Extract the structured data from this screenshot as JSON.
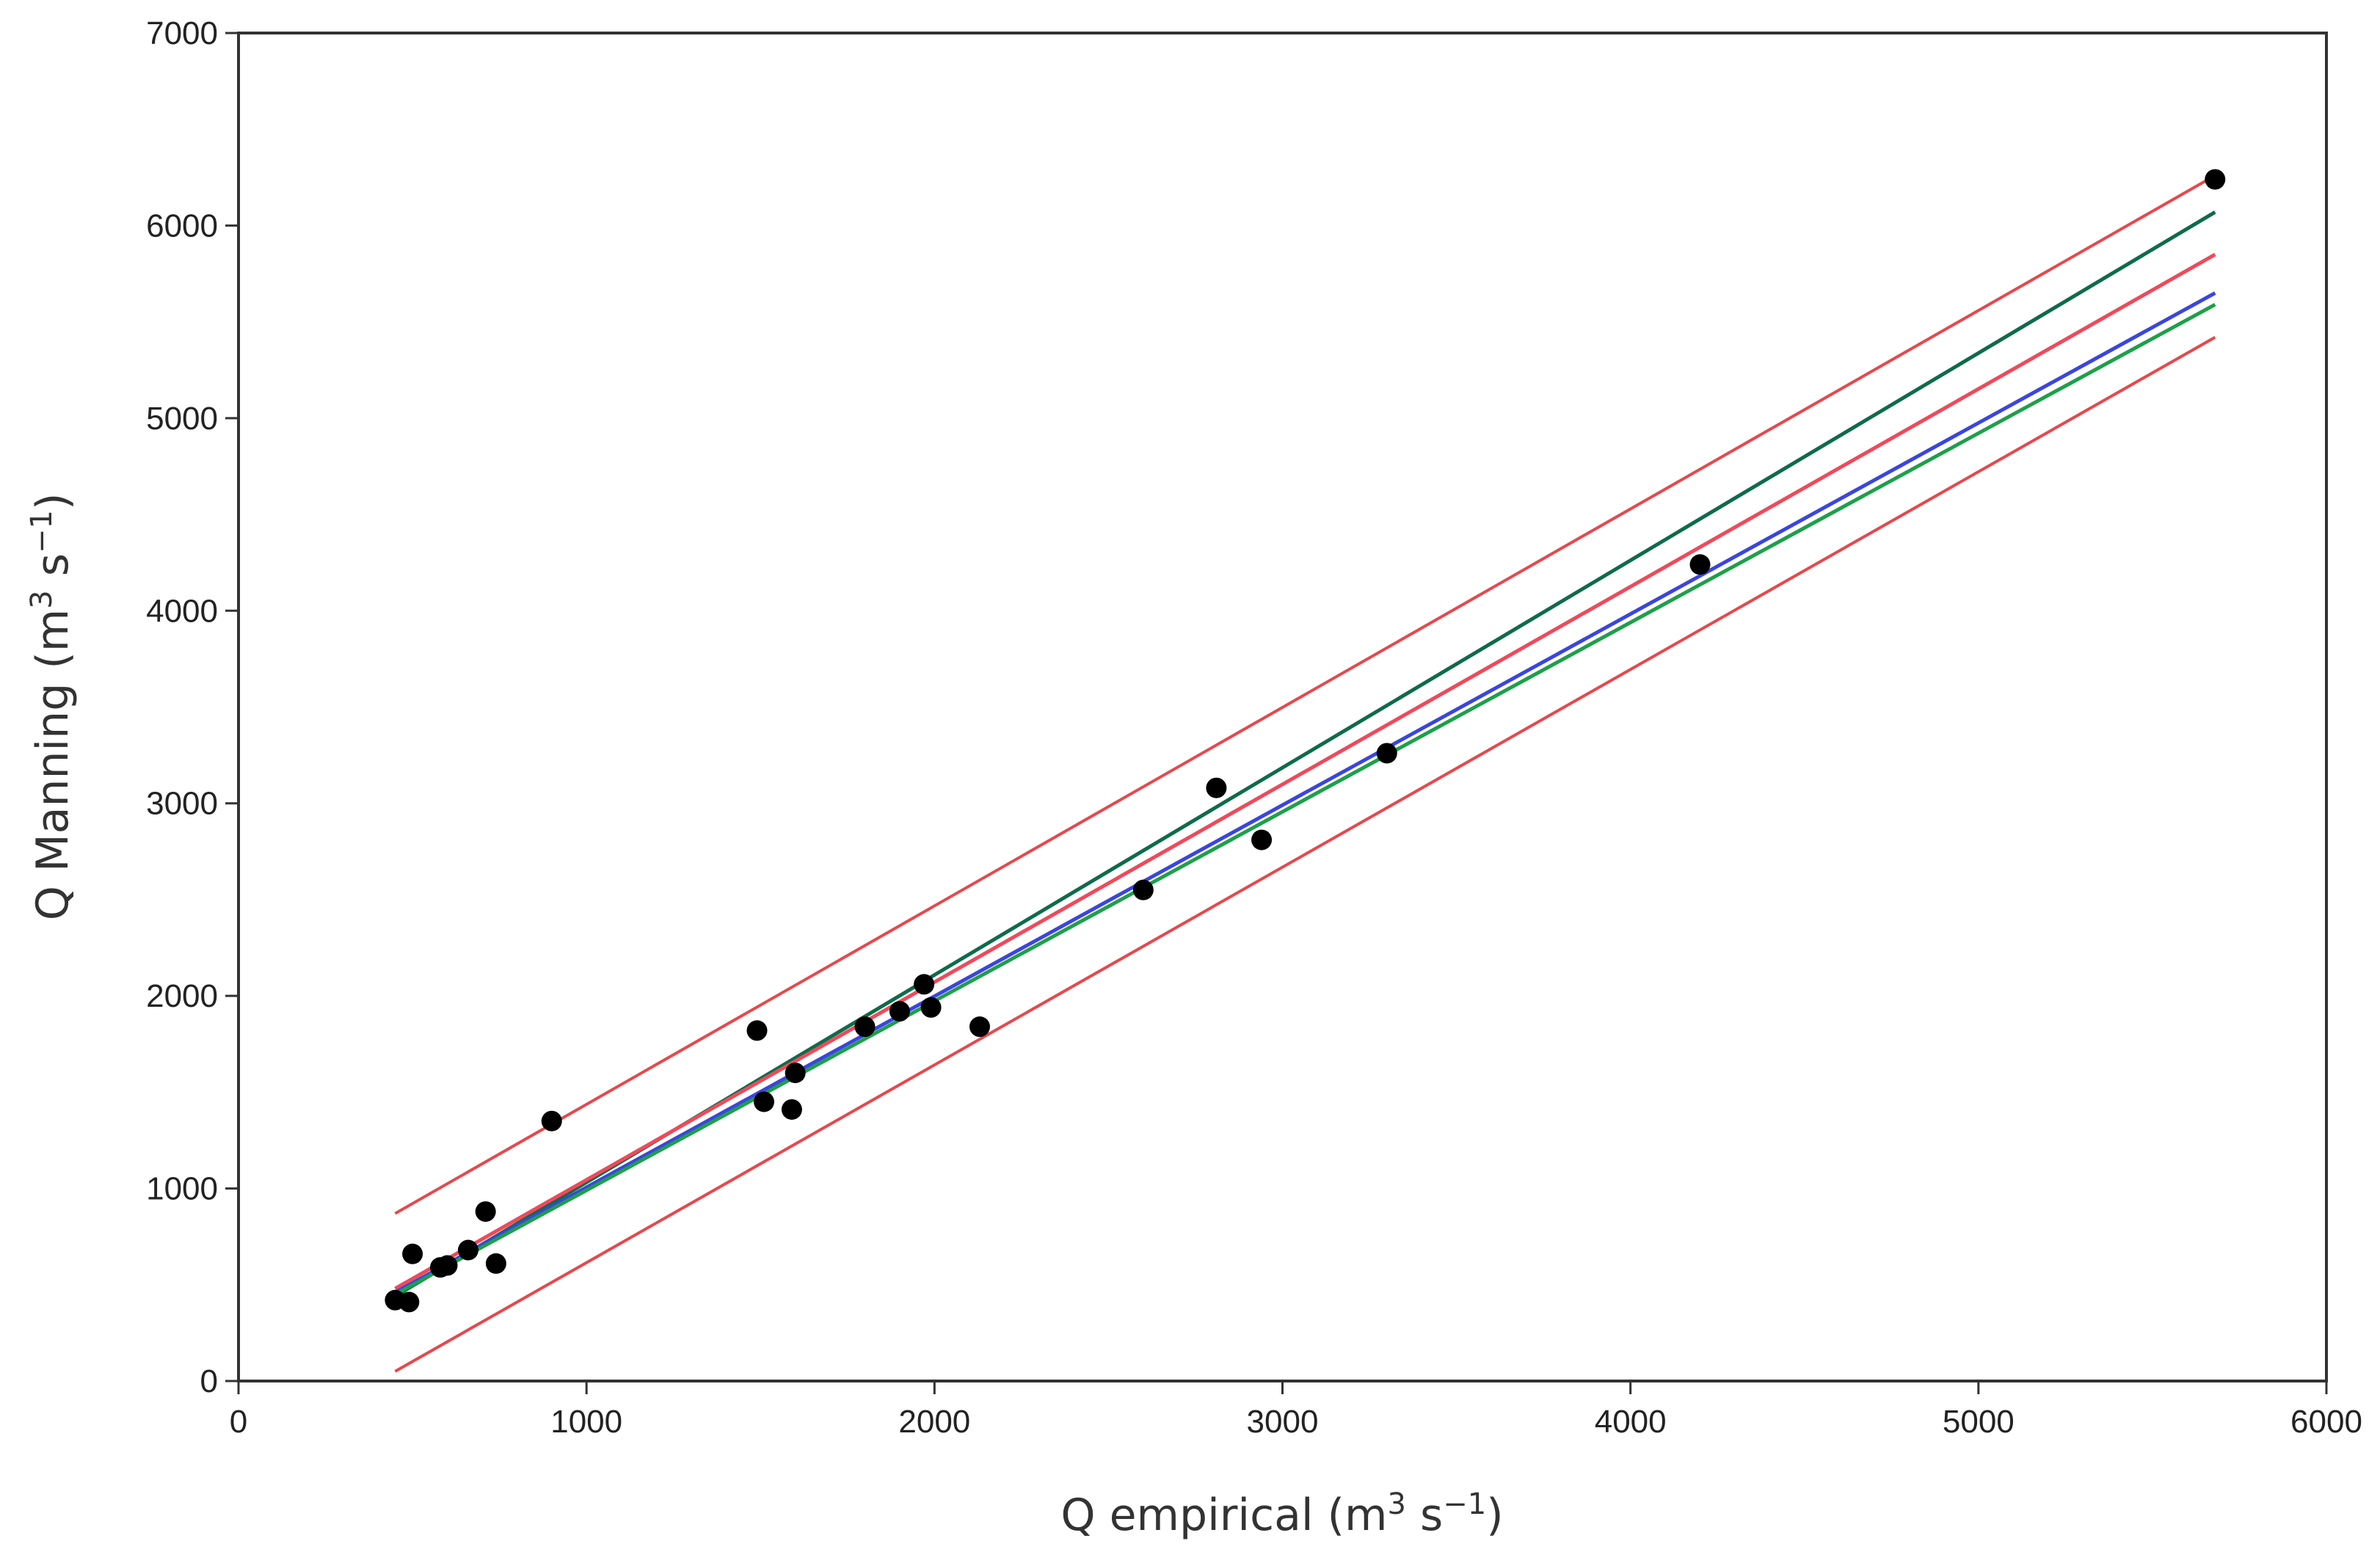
{
  "chart_data": {
    "type": "scatter",
    "title": "",
    "xlabel": {
      "base": "Q empirical (m",
      "sup1": "3",
      "mid": " s",
      "sup2": "−1",
      "end": ")"
    },
    "ylabel": {
      "base": "Q Manning (m",
      "sup1": "3",
      "mid": " s",
      "sup2": "−1",
      "end": ")"
    },
    "xlim": [
      0,
      6000
    ],
    "ylim": [
      0,
      7000
    ],
    "xticks": [
      "0",
      "1000",
      "2000",
      "3000",
      "4000",
      "5000",
      "6000"
    ],
    "yticks": [
      "0",
      "1000",
      "2000",
      "3000",
      "4000",
      "5000",
      "6000",
      "7000"
    ],
    "grid": false,
    "points": [
      {
        "x": 450,
        "y": 420
      },
      {
        "x": 490,
        "y": 410
      },
      {
        "x": 500,
        "y": 660
      },
      {
        "x": 580,
        "y": 590
      },
      {
        "x": 600,
        "y": 600
      },
      {
        "x": 660,
        "y": 680
      },
      {
        "x": 710,
        "y": 880
      },
      {
        "x": 740,
        "y": 610
      },
      {
        "x": 900,
        "y": 1350
      },
      {
        "x": 1490,
        "y": 1820
      },
      {
        "x": 1510,
        "y": 1450
      },
      {
        "x": 1590,
        "y": 1410
      },
      {
        "x": 1600,
        "y": 1600
      },
      {
        "x": 1800,
        "y": 1840
      },
      {
        "x": 1900,
        "y": 1920
      },
      {
        "x": 1970,
        "y": 2060
      },
      {
        "x": 1990,
        "y": 1940
      },
      {
        "x": 2130,
        "y": 1840
      },
      {
        "x": 2600,
        "y": 2550
      },
      {
        "x": 2810,
        "y": 3080
      },
      {
        "x": 2940,
        "y": 2810
      },
      {
        "x": 3300,
        "y": 3260
      },
      {
        "x": 4200,
        "y": 4240
      },
      {
        "x": 5680,
        "y": 6240
      }
    ],
    "series": [
      {
        "style": "prediction-band-upper",
        "color": "#e8474c",
        "x": [
          450,
          5680
        ],
        "y": [
          870,
          6260
        ]
      },
      {
        "style": "line",
        "color": "#0e6b4a",
        "x": [
          450,
          5680
        ],
        "y": [
          440,
          6070
        ]
      },
      {
        "style": "line",
        "color": "#f0495a",
        "x": [
          450,
          5680
        ],
        "y": [
          480,
          5850
        ]
      },
      {
        "style": "line",
        "color": "#3a45e0",
        "x": [
          450,
          5680
        ],
        "y": [
          460,
          5650
        ]
      },
      {
        "style": "line",
        "color": "#1ca048",
        "x": [
          450,
          5680
        ],
        "y": [
          450,
          5590
        ]
      },
      {
        "style": "prediction-band-lower",
        "color": "#e8474c",
        "x": [
          450,
          5680
        ],
        "y": [
          50,
          5420
        ]
      }
    ],
    "colors": {
      "points": "#000000",
      "axis": "#333333"
    }
  }
}
